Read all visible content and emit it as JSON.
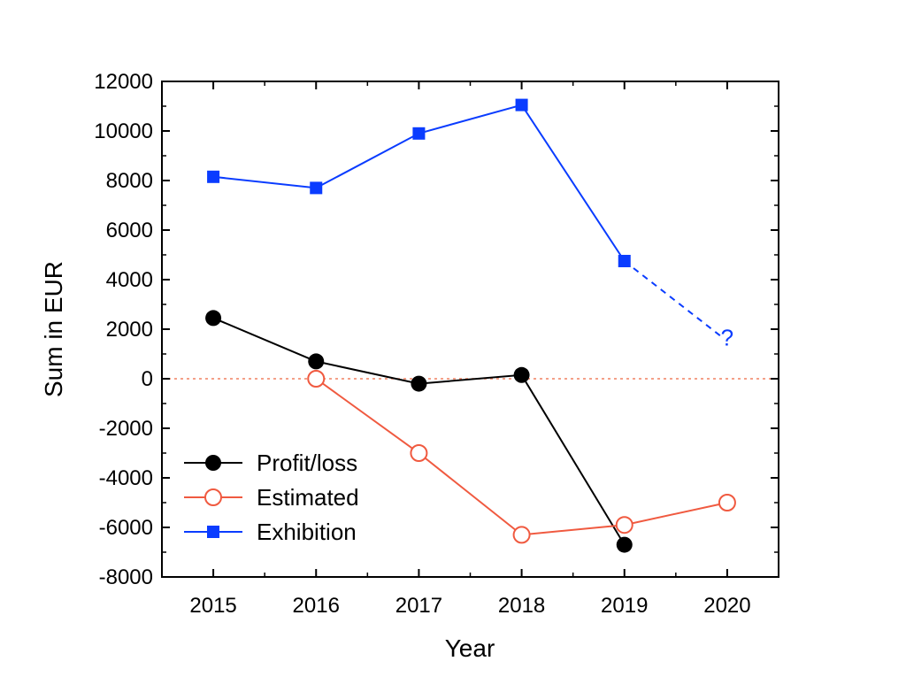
{
  "chart_data": {
    "type": "line",
    "title": "",
    "xlabel": "Year",
    "ylabel": "Sum in EUR",
    "x": [
      2015,
      2016,
      2017,
      2018,
      2019,
      2020
    ],
    "x_tick_labels": [
      "2015",
      "2016",
      "2017",
      "2018",
      "2019",
      "2020"
    ],
    "xlim": [
      2014.5,
      2020.5
    ],
    "ylim": [
      -8000,
      12000
    ],
    "y_ticks": [
      -8000,
      -6000,
      -4000,
      -2000,
      0,
      2000,
      4000,
      6000,
      8000,
      10000,
      12000
    ],
    "y_tick_labels": [
      "-8000",
      "-6000",
      "-4000",
      "-2000",
      "0",
      "2000",
      "4000",
      "6000",
      "8000",
      "10000",
      "12000"
    ],
    "grid": false,
    "legend_position": "bottom-left",
    "reference_line": {
      "y": 0,
      "style": "dotted",
      "color": "#f08060"
    },
    "series": [
      {
        "name": "Profit/loss",
        "color": "#000000",
        "marker": "filled-circle",
        "points": [
          {
            "x": 2015,
            "y": 2450
          },
          {
            "x": 2016,
            "y": 700
          },
          {
            "x": 2017,
            "y": -200
          },
          {
            "x": 2018,
            "y": 150
          },
          {
            "x": 2019,
            "y": -6700
          }
        ]
      },
      {
        "name": "Estimated",
        "color": "#f05a40",
        "marker": "open-circle",
        "points": [
          {
            "x": 2016,
            "y": 0
          },
          {
            "x": 2017,
            "y": -3000
          },
          {
            "x": 2018,
            "y": -6300
          },
          {
            "x": 2019,
            "y": -5900
          },
          {
            "x": 2020,
            "y": -5000
          }
        ]
      },
      {
        "name": "Exhibition",
        "color": "#0a3cff",
        "marker": "filled-square",
        "points": [
          {
            "x": 2015,
            "y": 8150
          },
          {
            "x": 2016,
            "y": 7700
          },
          {
            "x": 2017,
            "y": 9900
          },
          {
            "x": 2018,
            "y": 11050
          },
          {
            "x": 2019,
            "y": 4750
          }
        ],
        "projection": {
          "from": {
            "x": 2019,
            "y": 4750
          },
          "to": {
            "x": 2020,
            "y": 1700
          },
          "style": "dashed",
          "label": "?"
        }
      }
    ]
  }
}
